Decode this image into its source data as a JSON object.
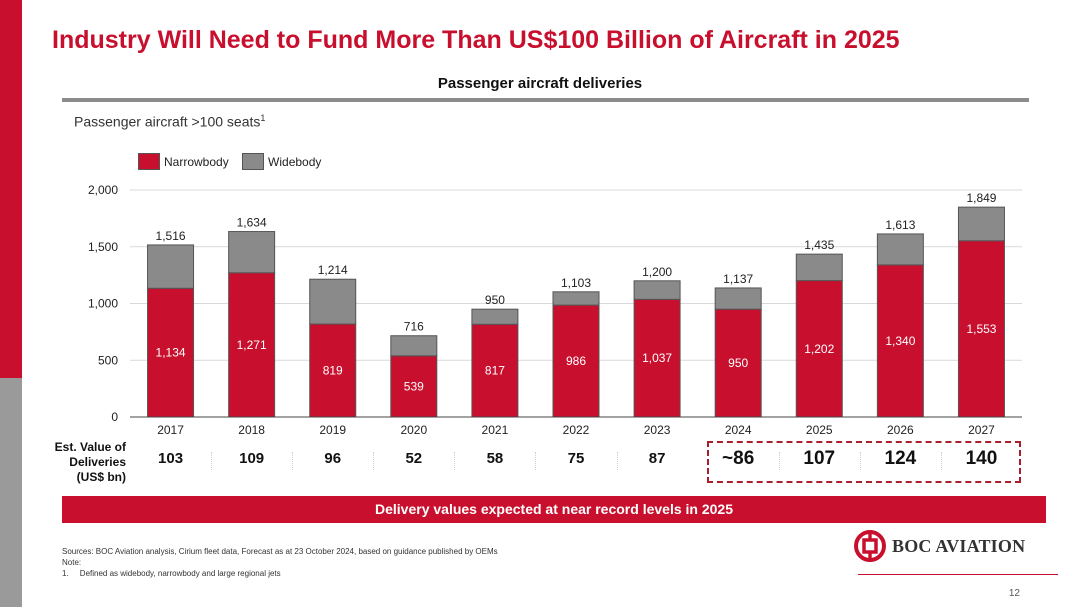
{
  "title": "Industry Will Need to Fund More Than US$100 Billion of Aircraft in 2025",
  "subtitle": "Passenger aircraft deliveries",
  "segment_label": "Passenger aircraft >100 seats",
  "segment_label_sup": "1",
  "colors": {
    "brand_red": "#c8102e",
    "narrowbody": "#c8102e",
    "widebody": "#8a8a8a",
    "rule_gray": "#8c8c8c"
  },
  "chart_data": {
    "type": "bar",
    "stacked": true,
    "categories": [
      "2017",
      "2018",
      "2019",
      "2020",
      "2021",
      "2022",
      "2023",
      "2024",
      "2025",
      "2026",
      "2027"
    ],
    "series": [
      {
        "name": "Narrowbody",
        "values": [
          1134,
          1271,
          819,
          539,
          817,
          986,
          1037,
          950,
          1202,
          1340,
          1553
        ],
        "labels": [
          "1,134",
          "1,271",
          "819",
          "539",
          "817",
          "986",
          "1,037",
          "950",
          "1,202",
          "1,340",
          "1,553"
        ]
      },
      {
        "name": "Widebody",
        "values": [
          382,
          363,
          395,
          177,
          133,
          117,
          163,
          187,
          233,
          273,
          296
        ]
      }
    ],
    "totals": [
      1516,
      1634,
      1214,
      716,
      950,
      1103,
      1200,
      1137,
      1435,
      1613,
      1849
    ],
    "total_labels": [
      "1,516",
      "1,634",
      "1,214",
      "716",
      "950",
      "1,103",
      "1,200",
      "1,137",
      "1,435",
      "1,613",
      "1,849"
    ],
    "y_ticks": [
      0,
      500,
      1000,
      1500,
      2000
    ],
    "y_tick_labels": [
      "0",
      "500",
      "1,000",
      "1,500",
      "2,000"
    ],
    "ylim": [
      0,
      2000
    ],
    "legend": [
      "Narrowbody",
      "Widebody"
    ],
    "legend_position": "top-left",
    "grid": true
  },
  "delivery_values": {
    "label_lines": [
      "Est. Value of",
      "Deliveries",
      "(US$ bn)"
    ],
    "values": [
      "103",
      "109",
      "96",
      "52",
      "58",
      "75",
      "87",
      "~86",
      "107",
      "124",
      "140"
    ]
  },
  "banner": "Delivery values expected at near record levels in 2025",
  "footnotes": [
    "Sources: BOC Aviation analysis, Cirium fleet data, Forecast as at 23 October 2024, based on guidance published by OEMs",
    "Note:",
    "1.     Defined as widebody, narrowbody and large regional jets"
  ],
  "logo_text": "BOC AVIATION",
  "page_number": "12"
}
